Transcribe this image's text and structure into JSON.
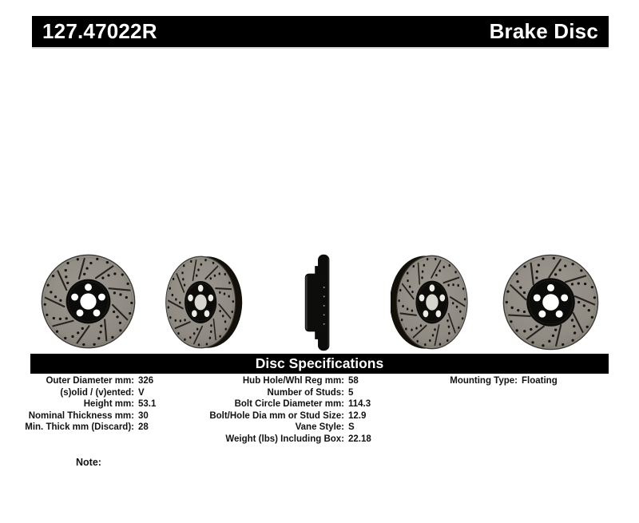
{
  "header": {
    "part_number": "127.47022R",
    "product_type": "Brake Disc"
  },
  "gallery": {
    "images": [
      {
        "name": "brake-disc-front-view"
      },
      {
        "name": "brake-disc-angled-right-view"
      },
      {
        "name": "brake-disc-edge-profile-view"
      },
      {
        "name": "brake-disc-angled-left-view"
      },
      {
        "name": "brake-disc-front-view-alt"
      }
    ]
  },
  "spec_section": {
    "title": "Disc Specifications",
    "left_column": [
      {
        "label": "Outer Diameter mm:",
        "value": "326"
      },
      {
        "label": "(s)olid / (v)ented:",
        "value": "V"
      },
      {
        "label": "Height mm:",
        "value": "53.1"
      },
      {
        "label": "Nominal Thickness mm:",
        "value": "30"
      },
      {
        "label": "Min. Thick mm (Discard):",
        "value": "28"
      }
    ],
    "middle_column": [
      {
        "label": "Hub Hole/Whl Reg mm:",
        "value": "58"
      },
      {
        "label": "Number of Studs:",
        "value": "5"
      },
      {
        "label": "Bolt Circle Diameter mm:",
        "value": "114.3"
      },
      {
        "label": "Bolt/Hole Dia mm or Stud Size:",
        "value": "12.9"
      },
      {
        "label": "Vane Style:",
        "value": "S"
      },
      {
        "label": "Weight (lbs) Including Box:",
        "value": "22.18"
      }
    ],
    "right_column": [
      {
        "label": "Mounting Type:",
        "value": "Floating"
      }
    ]
  },
  "note": {
    "label": "Note:"
  },
  "colors": {
    "title_bar_bg": "#000000",
    "title_bar_text": "#ffffff",
    "spec_text": "#121212",
    "rotor_face": "#8f8b83",
    "hub": "#0b0b0a"
  }
}
